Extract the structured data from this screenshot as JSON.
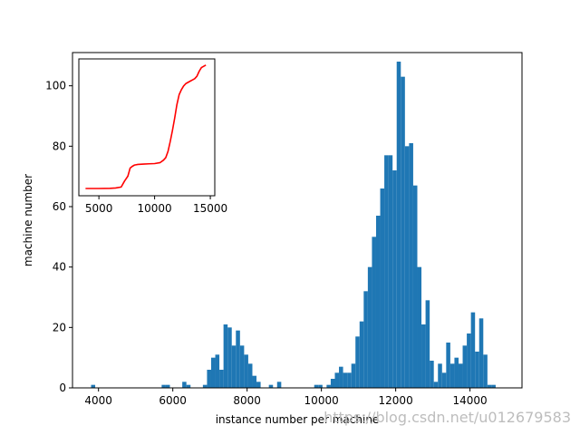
{
  "chart_data": [
    {
      "type": "bar",
      "title": "",
      "xlabel": "instance number per machine",
      "ylabel": "machine number",
      "xlim": [
        3300,
        15400
      ],
      "ylim": [
        0,
        111
      ],
      "xticks": [
        4000,
        6000,
        8000,
        10000,
        12000,
        14000
      ],
      "yticks": [
        0,
        20,
        40,
        60,
        80,
        100
      ],
      "bar_color": "#1f77b4",
      "grid": false,
      "bin_width": 111,
      "bins": [
        [
          3800,
          1
        ],
        [
          5700,
          1
        ],
        [
          5811,
          1
        ],
        [
          6255,
          2
        ],
        [
          6366,
          1
        ],
        [
          6810,
          1
        ],
        [
          6921,
          6
        ],
        [
          7032,
          10
        ],
        [
          7143,
          11
        ],
        [
          7254,
          6
        ],
        [
          7365,
          21
        ],
        [
          7476,
          20
        ],
        [
          7587,
          14
        ],
        [
          7698,
          19
        ],
        [
          7809,
          14
        ],
        [
          7920,
          11
        ],
        [
          8031,
          8
        ],
        [
          8142,
          4
        ],
        [
          8253,
          2
        ],
        [
          8586,
          1
        ],
        [
          8808,
          2
        ],
        [
          9807,
          1
        ],
        [
          9918,
          1
        ],
        [
          10140,
          1
        ],
        [
          10251,
          3
        ],
        [
          10362,
          5
        ],
        [
          10473,
          7
        ],
        [
          10584,
          5
        ],
        [
          10695,
          5
        ],
        [
          10806,
          8
        ],
        [
          10917,
          17
        ],
        [
          11028,
          22
        ],
        [
          11139,
          32
        ],
        [
          11250,
          40
        ],
        [
          11361,
          50
        ],
        [
          11472,
          57
        ],
        [
          11583,
          66
        ],
        [
          11694,
          77
        ],
        [
          11805,
          77
        ],
        [
          11916,
          72
        ],
        [
          12027,
          108
        ],
        [
          12138,
          103
        ],
        [
          12249,
          80
        ],
        [
          12360,
          81
        ],
        [
          12471,
          67
        ],
        [
          12582,
          40
        ],
        [
          12693,
          21
        ],
        [
          12804,
          29
        ],
        [
          12915,
          9
        ],
        [
          13026,
          2
        ],
        [
          13137,
          8
        ],
        [
          13248,
          5
        ],
        [
          13359,
          15
        ],
        [
          13470,
          8
        ],
        [
          13581,
          10
        ],
        [
          13692,
          8
        ],
        [
          13803,
          14
        ],
        [
          13914,
          18
        ],
        [
          14025,
          25
        ],
        [
          14136,
          12
        ],
        [
          14247,
          23
        ],
        [
          14358,
          11
        ],
        [
          14469,
          1
        ],
        [
          14580,
          1
        ]
      ]
    },
    {
      "type": "line",
      "title": "",
      "xlabel": "",
      "ylabel": "",
      "xlim": [
        3200,
        15400
      ],
      "ylim": [
        0,
        1.05
      ],
      "xticks": [
        5000,
        10000,
        15000
      ],
      "yticks": [],
      "line_color": "#ff0000",
      "x": [
        3800,
        5000,
        6000,
        6500,
        7000,
        7300,
        7600,
        7800,
        8000,
        8200,
        8500,
        9000,
        9500,
        10000,
        10500,
        10800,
        11000,
        11200,
        11400,
        11600,
        11800,
        12000,
        12200,
        12400,
        12600,
        12800,
        13000,
        13200,
        13400,
        13600,
        13800,
        14000,
        14200,
        14400,
        14600
      ],
      "y": [
        0.0,
        0.0,
        0.001,
        0.004,
        0.012,
        0.06,
        0.1,
        0.165,
        0.18,
        0.19,
        0.195,
        0.198,
        0.2,
        0.202,
        0.21,
        0.23,
        0.25,
        0.3,
        0.38,
        0.47,
        0.57,
        0.68,
        0.76,
        0.8,
        0.83,
        0.85,
        0.86,
        0.87,
        0.88,
        0.89,
        0.91,
        0.95,
        0.98,
        0.99,
        1.0
      ]
    }
  ],
  "watermark": "https://blog.csdn.net/u012679583"
}
